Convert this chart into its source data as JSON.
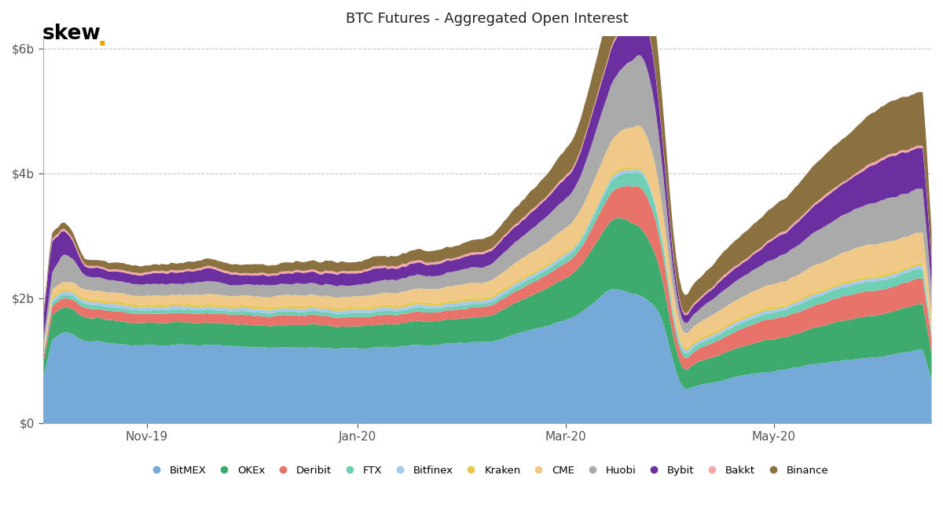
{
  "title": "BTC Futures - Aggregated Open Interest",
  "colors": {
    "BitMEX": "#74A9D8",
    "OKEx": "#3DAA6E",
    "Deribit": "#E8736A",
    "FTX": "#6ECFB5",
    "Bitfinex": "#A8C8E8",
    "Kraken": "#E8C84A",
    "CME": "#F0C888",
    "Huobi": "#AAAAAA",
    "Bybit": "#6B2FA0",
    "Bakkt": "#F4A8A8",
    "Binance": "#8B7040"
  },
  "legend_order": [
    "BitMEX",
    "OKEx",
    "Deribit",
    "FTX",
    "Bitfinex",
    "Kraken",
    "CME",
    "Huobi",
    "Bybit",
    "Bakkt",
    "Binance"
  ],
  "background_color": "#ffffff",
  "grid_color": "#bbbbbb",
  "ylim": [
    0,
    6.2
  ],
  "n_points": 300
}
